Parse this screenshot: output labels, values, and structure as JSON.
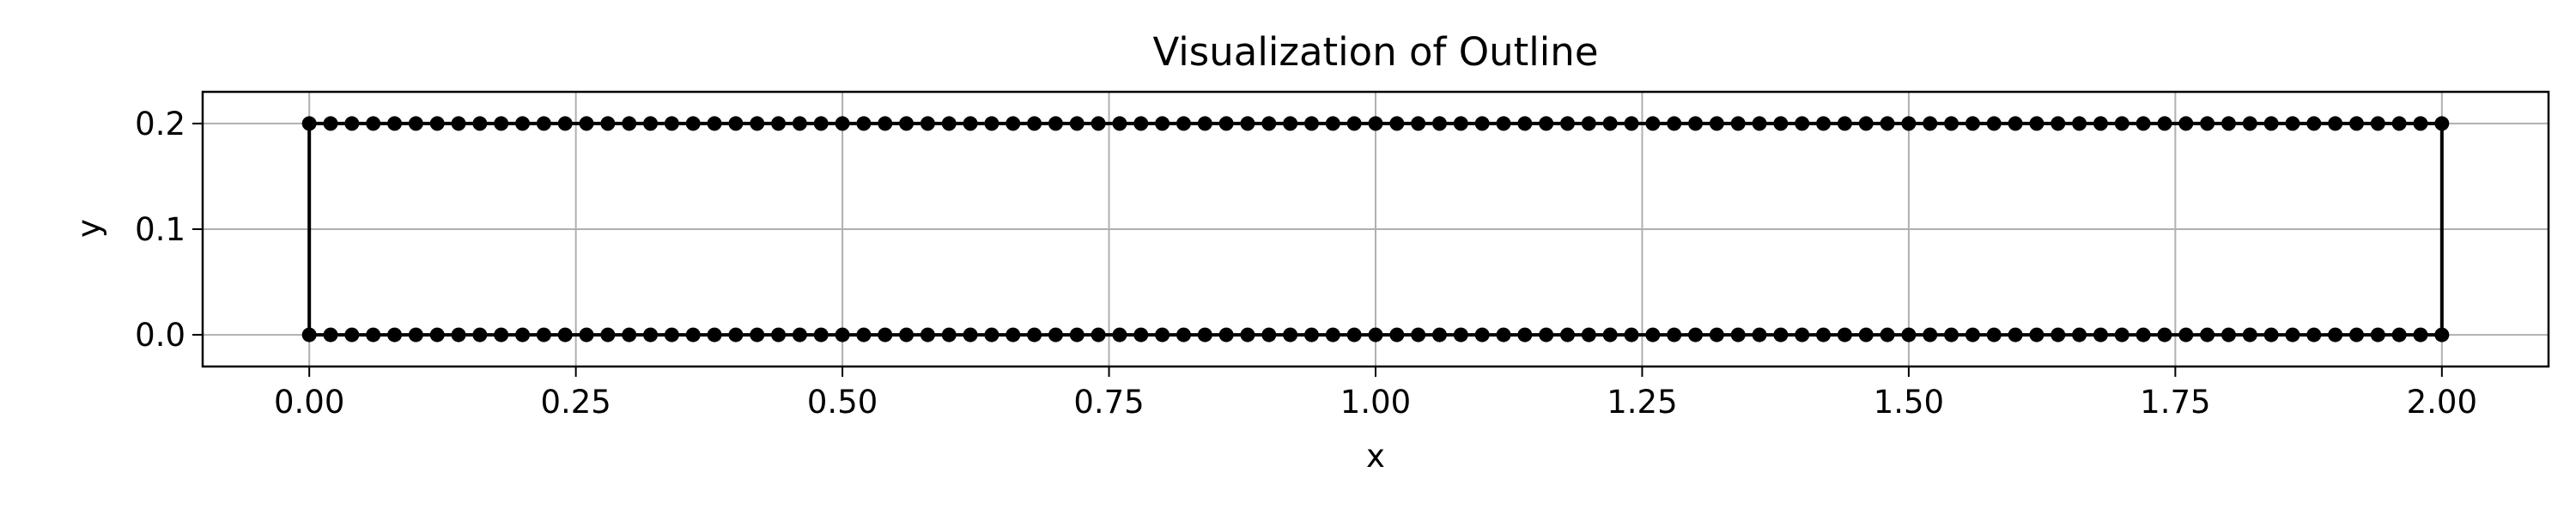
{
  "chart_data": {
    "type": "line",
    "title": "Visualization of Outline",
    "xlabel": "x",
    "ylabel": "y",
    "xlim": [
      -0.1,
      2.1
    ],
    "ylim": [
      -0.03,
      0.23
    ],
    "xticks": [
      0.0,
      0.25,
      0.5,
      0.75,
      1.0,
      1.25,
      1.5,
      1.75,
      2.0
    ],
    "xtick_labels": [
      "0.00",
      "0.25",
      "0.50",
      "0.75",
      "1.00",
      "1.25",
      "1.50",
      "1.75",
      "2.00"
    ],
    "yticks": [
      0.0,
      0.1,
      0.2
    ],
    "ytick_labels": [
      "0.0",
      "0.1",
      "0.2"
    ],
    "grid": true,
    "series": [
      {
        "color": "#000000",
        "marker": "circle",
        "outline": "closed rectangle: points every 0.02 along y=0 from x=0 to x=2, then x=2 from y=0 to y=0.2, then every 0.02 along y=0.2 back to x=0, then down to start",
        "points": {
          "bottom_edge": {
            "y": 0.0,
            "x_start": 0.0,
            "x_end": 2.0,
            "step": 0.02
          },
          "top_edge": {
            "y": 0.2,
            "x_start": 0.0,
            "x_end": 2.0,
            "step": 0.02
          }
        }
      }
    ]
  }
}
